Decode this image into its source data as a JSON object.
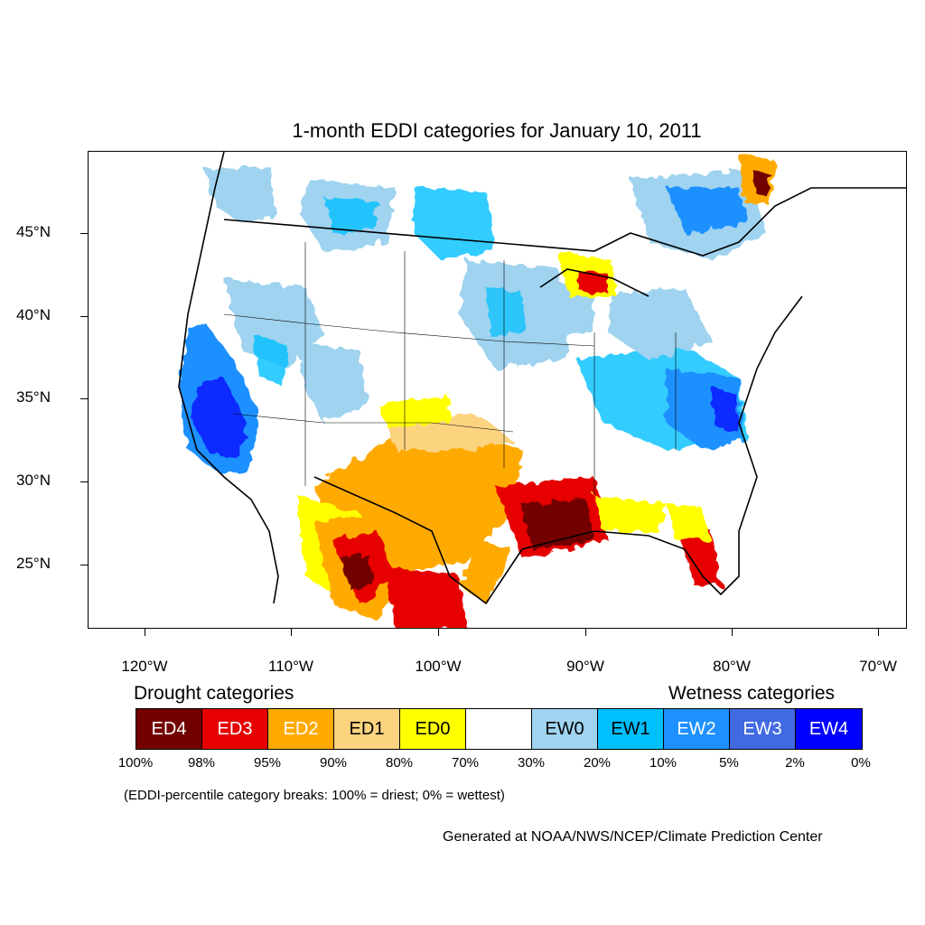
{
  "title": "1-month EDDI categories for January 10, 2011",
  "y_axis": {
    "ticks": [
      "45°N",
      "40°N",
      "35°N",
      "30°N",
      "25°N"
    ]
  },
  "x_axis": {
    "ticks": [
      "120°W",
      "110°W",
      "100°W",
      "90°W",
      "80°W",
      "70°W"
    ]
  },
  "legend": {
    "drought_heading": "Drought categories",
    "wetness_heading": "Wetness categories",
    "categories": [
      {
        "label": "ED4",
        "color": "#730000",
        "text_color": "#ffffff"
      },
      {
        "label": "ED3",
        "color": "#e60000",
        "text_color": "#ffffff"
      },
      {
        "label": "ED2",
        "color": "#ffaa00",
        "text_color": "#ffffff"
      },
      {
        "label": "ED1",
        "color": "#fcd37f",
        "text_color": "#000000"
      },
      {
        "label": "ED0",
        "color": "#ffff00",
        "text_color": "#000000"
      },
      {
        "label": "",
        "color": "#ffffff",
        "text_color": "#000000"
      },
      {
        "label": "EW0",
        "color": "#9fd3ef",
        "text_color": "#000000"
      },
      {
        "label": "EW1",
        "color": "#00bfff",
        "text_color": "#000000"
      },
      {
        "label": "EW2",
        "color": "#1e90ff",
        "text_color": "#ffffff"
      },
      {
        "label": "EW3",
        "color": "#4169e1",
        "text_color": "#ffffff"
      },
      {
        "label": "EW4",
        "color": "#0000ff",
        "text_color": "#ffffff"
      }
    ],
    "breaks": [
      "100%",
      "98%",
      "95%",
      "90%",
      "80%",
      "70%",
      "30%",
      "20%",
      "10%",
      "5%",
      "2%",
      "0%"
    ]
  },
  "note": "(EDDI-percentile category breaks: 100% = driest; 0% = wettest)",
  "credit": "Generated at NOAA/NWS/NCEP/Climate Prediction Center"
}
